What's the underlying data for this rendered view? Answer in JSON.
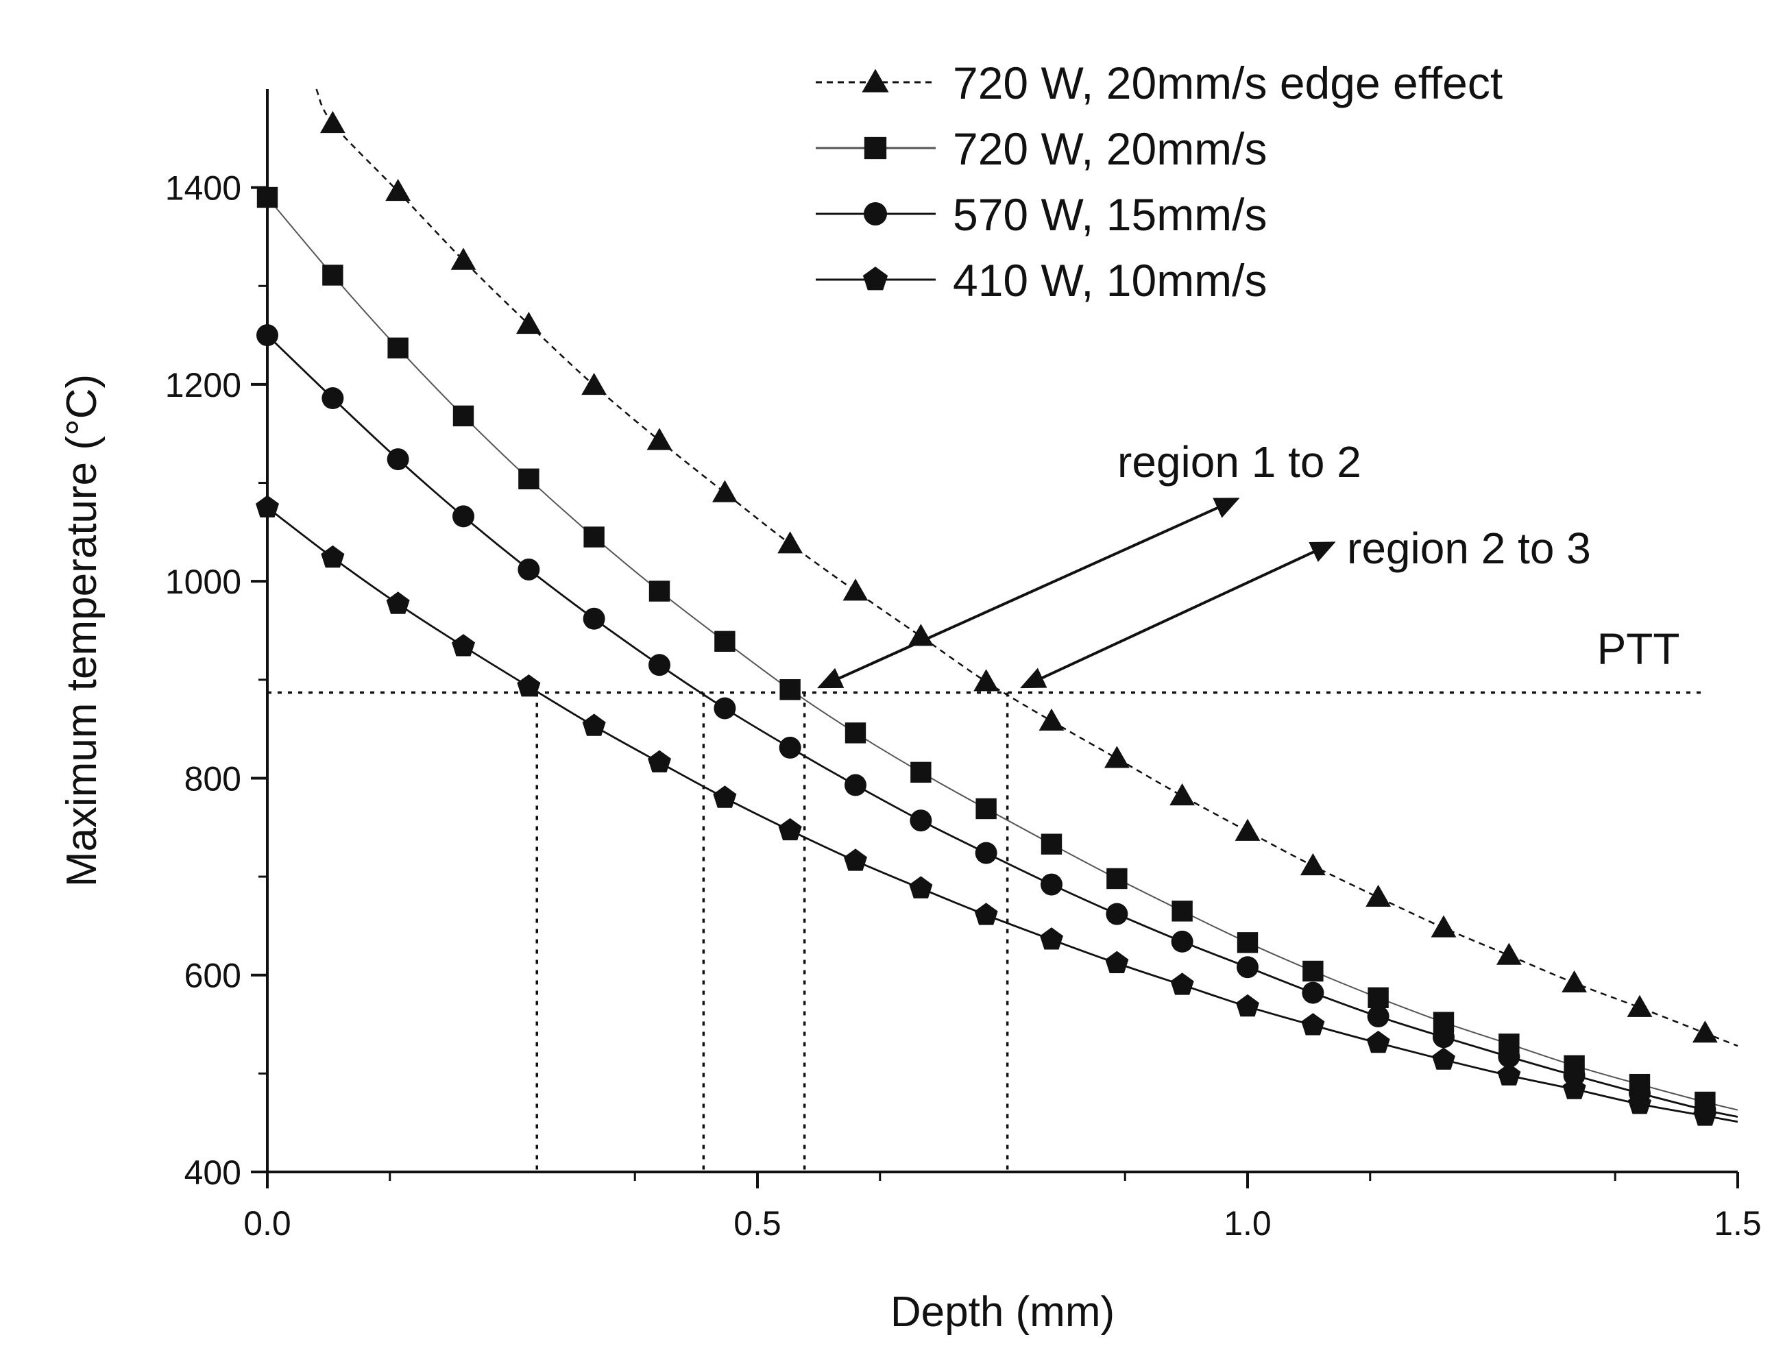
{
  "chart_data": {
    "type": "line",
    "title": "",
    "xlabel": "Depth (mm)",
    "ylabel": "Maximum temperature (°C)",
    "xlim": [
      0.0,
      1.5
    ],
    "ylim": [
      400,
      1500
    ],
    "x_ticks": [
      0.0,
      0.5,
      1.0,
      1.5
    ],
    "x_tick_labels": [
      "0.0",
      "0.5",
      "1.0",
      "1.5"
    ],
    "y_ticks": [
      400,
      600,
      800,
      1000,
      1200,
      1400
    ],
    "y_tick_labels": [
      "400",
      "600",
      "800",
      "1000",
      "1200",
      "1400"
    ],
    "grid": false,
    "legend_position": "top-right",
    "x": [
      0.0,
      0.0667,
      0.1333,
      0.2,
      0.2667,
      0.3333,
      0.4,
      0.4667,
      0.5333,
      0.6,
      0.6667,
      0.7333,
      0.8,
      0.8667,
      0.9333,
      1.0,
      1.0667,
      1.1333,
      1.2,
      1.2667,
      1.3333,
      1.4,
      1.4667
    ],
    "series": [
      {
        "name": "720 W, 20mm/s edge effect",
        "marker": "triangle",
        "line_style": "dashed",
        "values": [
          null,
          1465,
          1396,
          1326,
          1261,
          1199,
          1143,
          1090,
          1038,
          990,
          944,
          898,
          858,
          820,
          782,
          746,
          711,
          679,
          648,
          620,
          592,
          567,
          541
        ]
      },
      {
        "name": "720 W, 20mm/s",
        "marker": "square",
        "line_style": "thin-solid",
        "values": [
          1390,
          1311,
          1237,
          1168,
          1104,
          1045,
          990,
          939,
          890,
          846,
          806,
          769,
          733,
          698,
          665,
          633,
          604,
          577,
          552,
          530,
          508,
          489,
          471
        ]
      },
      {
        "name": "570 W, 15mm/s",
        "marker": "circle",
        "line_style": "solid",
        "values": [
          1250,
          1186,
          1124,
          1066,
          1012,
          962,
          915,
          871,
          831,
          793,
          757,
          724,
          692,
          662,
          634,
          608,
          582,
          558,
          537,
          517,
          498,
          480,
          463
        ]
      },
      {
        "name": "410 W, 10mm/s",
        "marker": "pentagon",
        "line_style": "solid",
        "values": [
          1075,
          1024,
          977,
          934,
          893,
          853,
          816,
          780,
          747,
          716,
          688,
          661,
          636,
          612,
          590,
          568,
          549,
          531,
          514,
          498,
          484,
          469,
          457
        ]
      }
    ],
    "ptt": {
      "label": "PTT",
      "value": 887
    },
    "crossing_depths": [
      0.275,
      0.445,
      0.548,
      0.755
    ],
    "annotations": [
      {
        "text": "region 1 to 2",
        "points_to": {
          "x": 0.548,
          "y": 887
        }
      },
      {
        "text": "region 2 to 3",
        "points_to": {
          "x": 0.755,
          "y": 887
        }
      }
    ]
  }
}
